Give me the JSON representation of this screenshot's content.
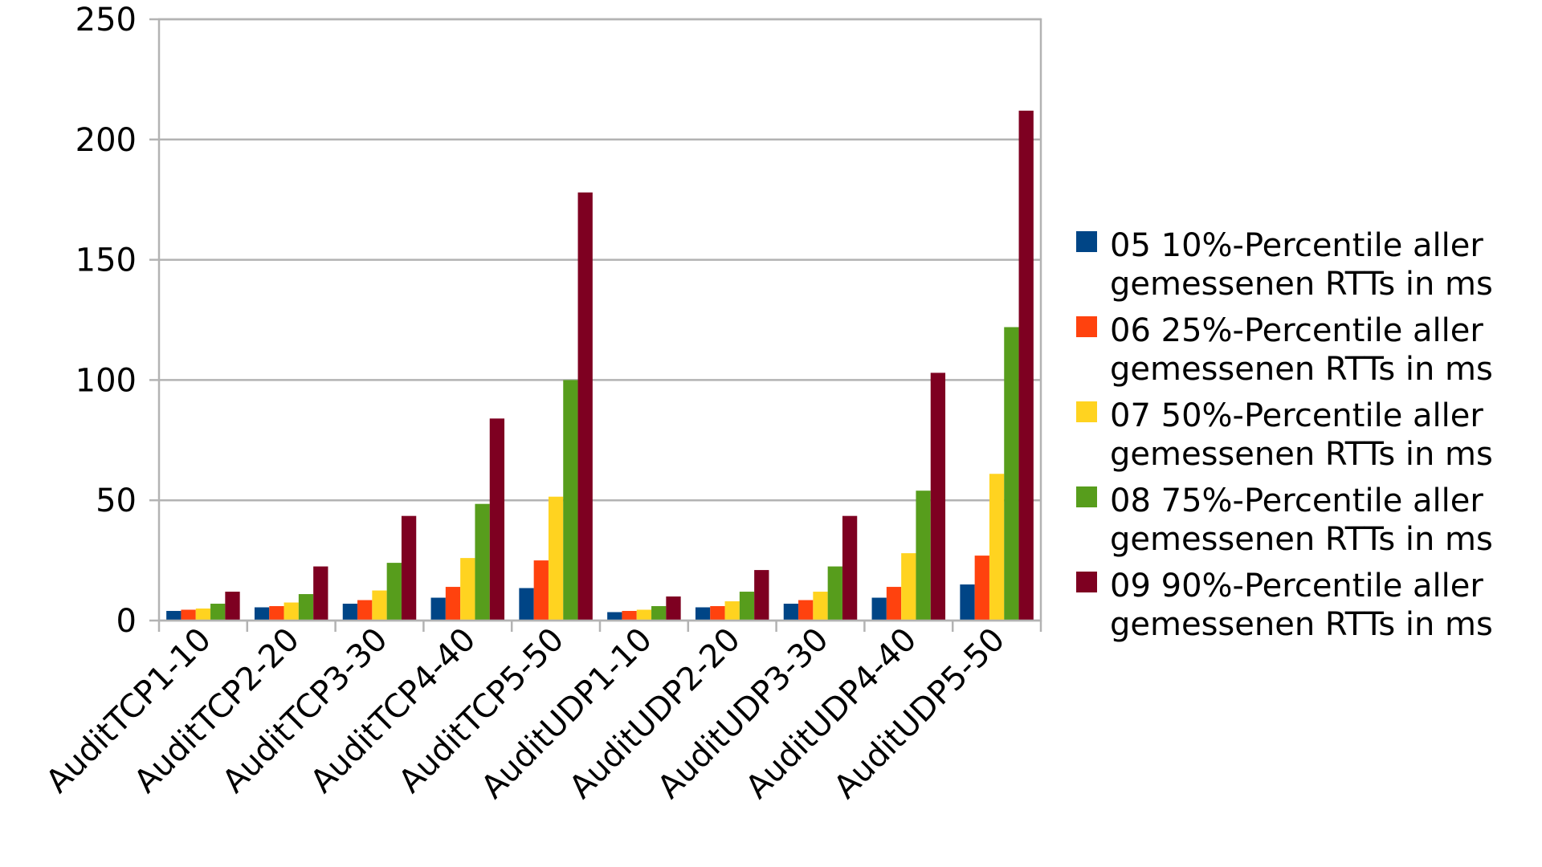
{
  "chart_data": {
    "type": "bar",
    "title": "",
    "xlabel": "",
    "ylabel": "",
    "ylim": [
      0,
      250
    ],
    "yticks": [
      0,
      50,
      100,
      150,
      200,
      250
    ],
    "grid": true,
    "legend_position": "right",
    "categories": [
      "AuditTCP1-10",
      "AuditTCP2-20",
      "AuditTCP3-30",
      "AuditTCP4-40",
      "AuditTCP5-50",
      "AuditUDP1-10",
      "AuditUDP2-20",
      "AuditUDP3-30",
      "AuditUDP4-40",
      "AuditUDP5-50"
    ],
    "series": [
      {
        "name": "05 10%-Percentile aller gemessenen RTTs in ms",
        "color": "#004586",
        "values": [
          4,
          5.5,
          7,
          9.5,
          13.5,
          3.5,
          5.5,
          7,
          9.5,
          15
        ]
      },
      {
        "name": "06 25%-Percentile aller gemessenen RTTs in ms",
        "color": "#ff420e",
        "values": [
          4.5,
          6,
          8.5,
          14,
          25,
          4,
          6,
          8.5,
          14,
          27
        ]
      },
      {
        "name": "07 50%-Percentile aller gemessenen RTTs in ms",
        "color": "#ffd320",
        "values": [
          5,
          7.5,
          12.5,
          26,
          51.5,
          4.5,
          8,
          12,
          28,
          61
        ]
      },
      {
        "name": "08 75%-Percentile aller gemessenen RTTs in ms",
        "color": "#579d1c",
        "values": [
          7,
          11,
          24,
          48.5,
          100,
          6,
          12,
          22.5,
          54,
          122
        ]
      },
      {
        "name": "09 90%-Percentile aller gemessenen RTTs in ms",
        "color": "#7e0021",
        "values": [
          12,
          22.5,
          43.5,
          84,
          178,
          10,
          21,
          43.5,
          103,
          212
        ]
      }
    ]
  }
}
